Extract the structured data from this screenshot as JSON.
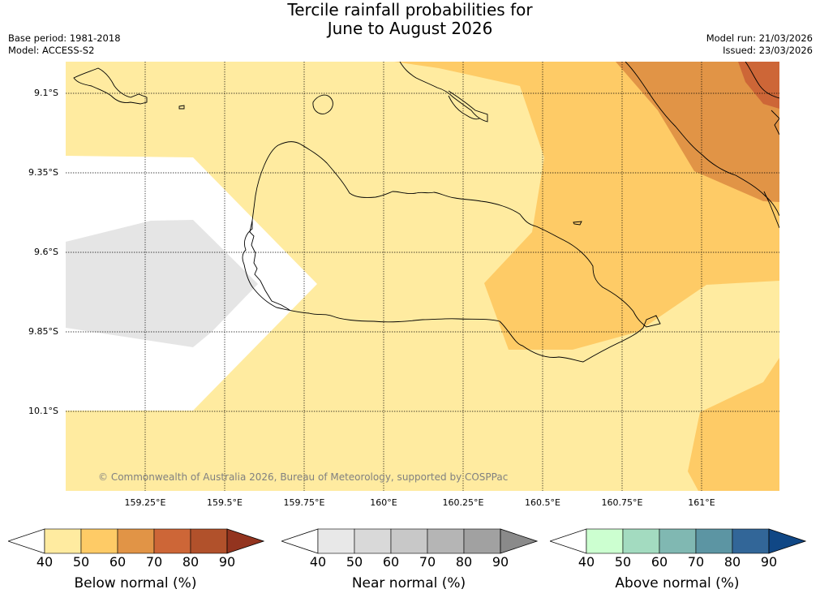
{
  "title": {
    "line1": "Tercile rainfall probabilities for",
    "line2": "June to August 2026"
  },
  "meta": {
    "base_period": "Base period: 1981-2018",
    "model": "Model: ACCESS-S2",
    "model_run": "Model run: 21/03/2026",
    "issued": "Issued: 23/03/2026"
  },
  "map": {
    "copyright": "© Commonwealth of Australia 2026, Bureau of Meteorology, supported by COSPPac",
    "lat_labels": [
      "9.1°S",
      "9.35°S",
      "9.6°S",
      "9.85°S",
      "10.1°S"
    ],
    "lon_labels": [
      "159.25°E",
      "159.5°E",
      "159.75°E",
      "160°E",
      "160.25°E",
      "160.5°E",
      "160.75°E",
      "161°E"
    ]
  },
  "legends": [
    {
      "label": "Below normal (%)",
      "colors": [
        "#ffffff",
        "#ffeba0",
        "#fecb66",
        "#e19446",
        "#cd6637",
        "#b1512b",
        "#93341f"
      ]
    },
    {
      "label": "Near normal (%)",
      "colors": [
        "#ffffff",
        "#e8e8e8",
        "#d9d9d9",
        "#c8c8c8",
        "#b5b5b5",
        "#a1a1a1",
        "#8a8a8a"
      ]
    },
    {
      "label": "Above normal (%)",
      "colors": [
        "#ffffff",
        "#ccffd0",
        "#a3dbc0",
        "#80b8b2",
        "#5c95a3",
        "#326698",
        "#104785"
      ]
    }
  ],
  "ticks": [
    "40",
    "50",
    "60",
    "70",
    "80",
    "90"
  ]
}
